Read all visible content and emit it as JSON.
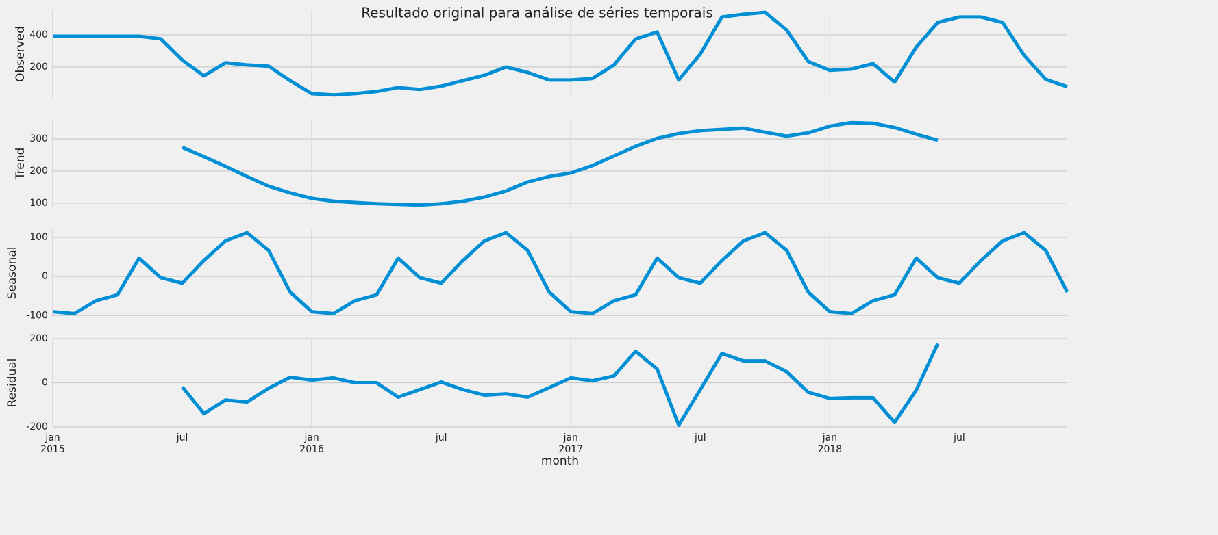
{
  "chart_data": [
    {
      "type": "line",
      "title": "Resultado original para análise de séries temporais",
      "ylabel": "Observed",
      "color": "#008fd5",
      "x": [
        "2015-01",
        "2015-02",
        "2015-03",
        "2015-04",
        "2015-05",
        "2015-06",
        "2015-07",
        "2015-08",
        "2015-09",
        "2015-10",
        "2015-11",
        "2015-12",
        "2016-01",
        "2016-02",
        "2016-03",
        "2016-04",
        "2016-05",
        "2016-06",
        "2016-07",
        "2016-08",
        "2016-09",
        "2016-10",
        "2016-11",
        "2016-12",
        "2017-01",
        "2017-02",
        "2017-03",
        "2017-04",
        "2017-05",
        "2017-06",
        "2017-07",
        "2017-08",
        "2017-09",
        "2017-10",
        "2017-11",
        "2017-12",
        "2018-01",
        "2018-02",
        "2018-03",
        "2018-04",
        "2018-05",
        "2018-06",
        "2018-07",
        "2018-08",
        "2018-09",
        "2018-10",
        "2018-11",
        "2018-12"
      ],
      "values": [
        391,
        391,
        391,
        391,
        391,
        375,
        243,
        145,
        226,
        213,
        205,
        115,
        34,
        26,
        34,
        47,
        72,
        60,
        81,
        115,
        149,
        200,
        166,
        119,
        119,
        128,
        213,
        374,
        417,
        119,
        281,
        511,
        528,
        540,
        430,
        234,
        179,
        187,
        221,
        106,
        323,
        477,
        511,
        511,
        477,
        272,
        123,
        77
      ],
      "xlim": [
        "2015-01",
        "2018-12"
      ],
      "ylim": [
        8,
        553
      ],
      "yticks": [
        200,
        400
      ],
      "grid": true
    },
    {
      "type": "line",
      "ylabel": "Trend",
      "color": "#008fd5",
      "x": [
        "2015-01",
        "2015-02",
        "2015-03",
        "2015-04",
        "2015-05",
        "2015-06",
        "2015-07",
        "2015-08",
        "2015-09",
        "2015-10",
        "2015-11",
        "2015-12",
        "2016-01",
        "2016-02",
        "2016-03",
        "2016-04",
        "2016-05",
        "2016-06",
        "2016-07",
        "2016-08",
        "2016-09",
        "2016-10",
        "2016-11",
        "2016-12",
        "2017-01",
        "2017-02",
        "2017-03",
        "2017-04",
        "2017-05",
        "2017-06",
        "2017-07",
        "2017-08",
        "2017-09",
        "2017-10",
        "2017-11",
        "2017-12",
        "2018-01",
        "2018-02",
        "2018-03",
        "2018-04",
        "2018-05",
        "2018-06",
        "2018-07",
        "2018-08",
        "2018-09",
        "2018-10",
        "2018-11",
        "2018-12"
      ],
      "values": [
        null,
        null,
        null,
        null,
        null,
        null,
        274,
        245,
        215,
        183,
        153,
        132,
        115,
        106,
        102,
        98,
        96,
        94,
        98,
        106,
        119,
        138,
        166,
        183,
        194,
        217,
        247,
        277,
        302,
        317,
        326,
        330,
        334,
        321,
        309,
        319,
        340,
        351,
        349,
        336,
        315,
        296,
        null,
        null,
        null,
        null,
        null,
        null
      ],
      "xlim": [
        "2015-01",
        "2018-12"
      ],
      "ylim": [
        87,
        360
      ],
      "yticks": [
        100,
        200,
        300
      ],
      "grid": true
    },
    {
      "type": "line",
      "ylabel": "Seasonal",
      "color": "#008fd5",
      "x": [
        "2015-01",
        "2015-02",
        "2015-03",
        "2015-04",
        "2015-05",
        "2015-06",
        "2015-07",
        "2015-08",
        "2015-09",
        "2015-10",
        "2015-11",
        "2015-12",
        "2016-01",
        "2016-02",
        "2016-03",
        "2016-04",
        "2016-05",
        "2016-06",
        "2016-07",
        "2016-08",
        "2016-09",
        "2016-10",
        "2016-11",
        "2016-12",
        "2017-01",
        "2017-02",
        "2017-03",
        "2017-04",
        "2017-05",
        "2017-06",
        "2017-07",
        "2017-08",
        "2017-09",
        "2017-10",
        "2017-11",
        "2017-12",
        "2018-01",
        "2018-02",
        "2018-03",
        "2018-04",
        "2018-05",
        "2018-06",
        "2018-07",
        "2018-08",
        "2018-09",
        "2018-10",
        "2018-11",
        "2018-12"
      ],
      "values": [
        -90,
        -95,
        -62,
        -47,
        47,
        -3,
        -17,
        41,
        91,
        112,
        67,
        -40,
        -90,
        -95,
        -62,
        -47,
        47,
        -3,
        -17,
        41,
        91,
        112,
        67,
        -40,
        -90,
        -95,
        -62,
        -47,
        47,
        -3,
        -17,
        41,
        91,
        112,
        67,
        -40,
        -90,
        -95,
        -62,
        -47,
        47,
        -3,
        -17,
        41,
        91,
        112,
        67,
        -40
      ],
      "xlim": [
        "2015-01",
        "2018-12"
      ],
      "ylim": [
        -103,
        121
      ],
      "yticks": [
        -100,
        0,
        100
      ],
      "grid": true
    },
    {
      "type": "line",
      "ylabel": "Residual",
      "xlabel": "month",
      "color": "#008fd5",
      "x": [
        "2015-01",
        "2015-02",
        "2015-03",
        "2015-04",
        "2015-05",
        "2015-06",
        "2015-07",
        "2015-08",
        "2015-09",
        "2015-10",
        "2015-11",
        "2015-12",
        "2016-01",
        "2016-02",
        "2016-03",
        "2016-04",
        "2016-05",
        "2016-06",
        "2016-07",
        "2016-08",
        "2016-09",
        "2016-10",
        "2016-11",
        "2016-12",
        "2017-01",
        "2017-02",
        "2017-03",
        "2017-04",
        "2017-05",
        "2017-06",
        "2017-07",
        "2017-08",
        "2017-09",
        "2017-10",
        "2017-11",
        "2017-12",
        "2018-01",
        "2018-02",
        "2018-03",
        "2018-04",
        "2018-05",
        "2018-06",
        "2018-07",
        "2018-08",
        "2018-09",
        "2018-10",
        "2018-11",
        "2018-12"
      ],
      "values": [
        null,
        null,
        null,
        null,
        null,
        null,
        -19,
        -140,
        -78,
        -87,
        -25,
        25,
        12,
        22,
        0,
        0,
        -65,
        -31,
        3,
        -31,
        -56,
        -50,
        -65,
        -22,
        22,
        9,
        31,
        143,
        62,
        -192,
        -31,
        133,
        99,
        99,
        50,
        -43,
        -71,
        -68,
        -68,
        -180,
        -34,
        177,
        null,
        null,
        null,
        null,
        null,
        null
      ],
      "xlim": [
        "2015-01",
        "2018-12"
      ],
      "ylim": [
        -200,
        200
      ],
      "yticks": [
        -200,
        0,
        200
      ],
      "grid": true,
      "xticks": [
        {
          "value": "2015-01",
          "label": "jan\n2015"
        },
        {
          "value": "2016-01",
          "label": "jan\n2016"
        },
        {
          "value": "2017-01",
          "label": "jan\n2017"
        },
        {
          "value": "2018-01",
          "label": "jan\n2018"
        }
      ],
      "xminorticks": [
        {
          "value": "2015-07",
          "label": "jul"
        },
        {
          "value": "2016-07",
          "label": "jul"
        },
        {
          "value": "2017-07",
          "label": "jul"
        },
        {
          "value": "2018-07",
          "label": "jul"
        }
      ]
    }
  ]
}
